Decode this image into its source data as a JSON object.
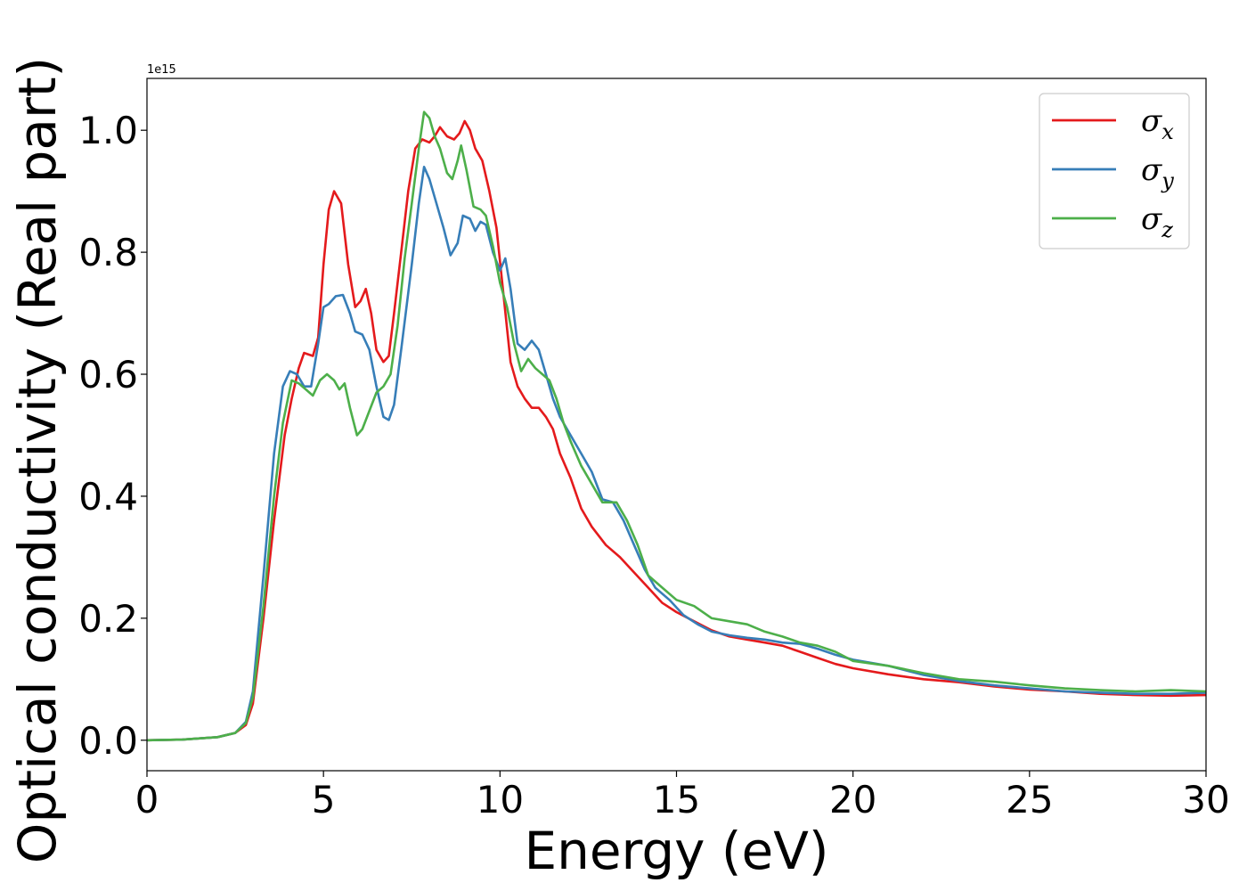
{
  "chart_data": {
    "type": "line",
    "xlabel": "Energy (eV)",
    "ylabel": "Optical conductivity (Real part)",
    "y_offset_label": "1e15",
    "xlim": [
      0,
      30
    ],
    "ylim": [
      -0.05,
      1.085
    ],
    "x_ticks": [
      0,
      5,
      10,
      15,
      20,
      25,
      30
    ],
    "x_tick_labels": [
      "0",
      "5",
      "10",
      "15",
      "20",
      "25",
      "30"
    ],
    "y_ticks": [
      0.0,
      0.2,
      0.4,
      0.6,
      0.8,
      1.0
    ],
    "y_tick_labels": [
      "0.0",
      "0.2",
      "0.4",
      "0.6",
      "0.8",
      "1.0"
    ],
    "grid": false,
    "legend_position": "top-right",
    "series": [
      {
        "name": "σ",
        "subscript": "x",
        "color": "#e41a1c",
        "points": [
          [
            0,
            0
          ],
          [
            1,
            0.001
          ],
          [
            2,
            0.005
          ],
          [
            2.5,
            0.012
          ],
          [
            2.8,
            0.025
          ],
          [
            3.0,
            0.06
          ],
          [
            3.3,
            0.2
          ],
          [
            3.6,
            0.36
          ],
          [
            3.9,
            0.5
          ],
          [
            4.1,
            0.56
          ],
          [
            4.3,
            0.61
          ],
          [
            4.45,
            0.635
          ],
          [
            4.7,
            0.63
          ],
          [
            4.85,
            0.66
          ],
          [
            5.0,
            0.78
          ],
          [
            5.15,
            0.87
          ],
          [
            5.3,
            0.9
          ],
          [
            5.5,
            0.88
          ],
          [
            5.7,
            0.78
          ],
          [
            5.9,
            0.71
          ],
          [
            6.05,
            0.72
          ],
          [
            6.2,
            0.74
          ],
          [
            6.35,
            0.7
          ],
          [
            6.5,
            0.64
          ],
          [
            6.7,
            0.62
          ],
          [
            6.85,
            0.63
          ],
          [
            7.0,
            0.7
          ],
          [
            7.2,
            0.8
          ],
          [
            7.4,
            0.9
          ],
          [
            7.6,
            0.97
          ],
          [
            7.8,
            0.985
          ],
          [
            8.0,
            0.98
          ],
          [
            8.15,
            0.99
          ],
          [
            8.3,
            1.005
          ],
          [
            8.5,
            0.99
          ],
          [
            8.7,
            0.985
          ],
          [
            8.85,
            0.995
          ],
          [
            9.0,
            1.015
          ],
          [
            9.15,
            1.0
          ],
          [
            9.3,
            0.97
          ],
          [
            9.5,
            0.95
          ],
          [
            9.7,
            0.9
          ],
          [
            9.9,
            0.84
          ],
          [
            10.1,
            0.73
          ],
          [
            10.3,
            0.62
          ],
          [
            10.5,
            0.58
          ],
          [
            10.7,
            0.56
          ],
          [
            10.9,
            0.545
          ],
          [
            11.1,
            0.545
          ],
          [
            11.3,
            0.53
          ],
          [
            11.5,
            0.51
          ],
          [
            11.7,
            0.47
          ],
          [
            12.0,
            0.43
          ],
          [
            12.3,
            0.38
          ],
          [
            12.6,
            0.35
          ],
          [
            13.0,
            0.32
          ],
          [
            13.4,
            0.3
          ],
          [
            13.8,
            0.275
          ],
          [
            14.2,
            0.25
          ],
          [
            14.6,
            0.225
          ],
          [
            15.0,
            0.21
          ],
          [
            15.5,
            0.195
          ],
          [
            16.0,
            0.18
          ],
          [
            16.5,
            0.17
          ],
          [
            17.0,
            0.165
          ],
          [
            17.5,
            0.16
          ],
          [
            18.0,
            0.155
          ],
          [
            18.5,
            0.145
          ],
          [
            19.0,
            0.135
          ],
          [
            19.5,
            0.125
          ],
          [
            20.0,
            0.118
          ],
          [
            21.0,
            0.108
          ],
          [
            22.0,
            0.1
          ],
          [
            23.0,
            0.095
          ],
          [
            24.0,
            0.088
          ],
          [
            25.0,
            0.083
          ],
          [
            26.0,
            0.08
          ],
          [
            27.0,
            0.076
          ],
          [
            28.0,
            0.074
          ],
          [
            29.0,
            0.073
          ],
          [
            30.0,
            0.074
          ]
        ]
      },
      {
        "name": "σ",
        "subscript": "y",
        "color": "#377eb8",
        "points": [
          [
            0,
            0
          ],
          [
            1,
            0.001
          ],
          [
            2,
            0.005
          ],
          [
            2.5,
            0.012
          ],
          [
            2.8,
            0.03
          ],
          [
            3.0,
            0.08
          ],
          [
            3.3,
            0.27
          ],
          [
            3.6,
            0.47
          ],
          [
            3.85,
            0.58
          ],
          [
            4.05,
            0.605
          ],
          [
            4.25,
            0.6
          ],
          [
            4.45,
            0.58
          ],
          [
            4.65,
            0.58
          ],
          [
            4.85,
            0.65
          ],
          [
            5.0,
            0.71
          ],
          [
            5.15,
            0.715
          ],
          [
            5.35,
            0.728
          ],
          [
            5.55,
            0.73
          ],
          [
            5.75,
            0.7
          ],
          [
            5.9,
            0.67
          ],
          [
            6.1,
            0.665
          ],
          [
            6.3,
            0.64
          ],
          [
            6.5,
            0.58
          ],
          [
            6.7,
            0.53
          ],
          [
            6.85,
            0.525
          ],
          [
            7.0,
            0.55
          ],
          [
            7.2,
            0.64
          ],
          [
            7.5,
            0.78
          ],
          [
            7.7,
            0.88
          ],
          [
            7.85,
            0.94
          ],
          [
            8.0,
            0.92
          ],
          [
            8.2,
            0.88
          ],
          [
            8.4,
            0.84
          ],
          [
            8.6,
            0.795
          ],
          [
            8.8,
            0.815
          ],
          [
            8.95,
            0.86
          ],
          [
            9.15,
            0.855
          ],
          [
            9.3,
            0.835
          ],
          [
            9.45,
            0.85
          ],
          [
            9.6,
            0.845
          ],
          [
            9.8,
            0.8
          ],
          [
            10.0,
            0.77
          ],
          [
            10.15,
            0.79
          ],
          [
            10.3,
            0.74
          ],
          [
            10.5,
            0.65
          ],
          [
            10.7,
            0.64
          ],
          [
            10.9,
            0.655
          ],
          [
            11.1,
            0.64
          ],
          [
            11.3,
            0.6
          ],
          [
            11.5,
            0.56
          ],
          [
            11.7,
            0.53
          ],
          [
            12.0,
            0.5
          ],
          [
            12.3,
            0.47
          ],
          [
            12.6,
            0.44
          ],
          [
            12.9,
            0.395
          ],
          [
            13.2,
            0.39
          ],
          [
            13.5,
            0.36
          ],
          [
            13.8,
            0.32
          ],
          [
            14.1,
            0.28
          ],
          [
            14.4,
            0.25
          ],
          [
            14.8,
            0.23
          ],
          [
            15.2,
            0.205
          ],
          [
            15.6,
            0.19
          ],
          [
            16.0,
            0.178
          ],
          [
            16.5,
            0.172
          ],
          [
            17.0,
            0.168
          ],
          [
            17.5,
            0.165
          ],
          [
            18.0,
            0.16
          ],
          [
            18.5,
            0.158
          ],
          [
            19.0,
            0.15
          ],
          [
            19.5,
            0.14
          ],
          [
            20.0,
            0.132
          ],
          [
            21.0,
            0.122
          ],
          [
            22.0,
            0.107
          ],
          [
            23.0,
            0.097
          ],
          [
            24.0,
            0.09
          ],
          [
            25.0,
            0.085
          ],
          [
            26.0,
            0.08
          ],
          [
            27.0,
            0.078
          ],
          [
            28.0,
            0.076
          ],
          [
            29.0,
            0.076
          ],
          [
            30.0,
            0.078
          ]
        ]
      },
      {
        "name": "σ",
        "subscript": "z",
        "color": "#4daf4a",
        "points": [
          [
            0,
            0
          ],
          [
            1,
            0.001
          ],
          [
            2,
            0.005
          ],
          [
            2.5,
            0.012
          ],
          [
            2.8,
            0.028
          ],
          [
            3.0,
            0.07
          ],
          [
            3.3,
            0.22
          ],
          [
            3.6,
            0.4
          ],
          [
            3.85,
            0.52
          ],
          [
            4.1,
            0.59
          ],
          [
            4.3,
            0.585
          ],
          [
            4.5,
            0.575
          ],
          [
            4.7,
            0.565
          ],
          [
            4.9,
            0.59
          ],
          [
            5.1,
            0.6
          ],
          [
            5.3,
            0.59
          ],
          [
            5.45,
            0.575
          ],
          [
            5.6,
            0.585
          ],
          [
            5.75,
            0.545
          ],
          [
            5.95,
            0.5
          ],
          [
            6.1,
            0.51
          ],
          [
            6.3,
            0.54
          ],
          [
            6.5,
            0.57
          ],
          [
            6.7,
            0.58
          ],
          [
            6.9,
            0.6
          ],
          [
            7.1,
            0.68
          ],
          [
            7.3,
            0.79
          ],
          [
            7.5,
            0.88
          ],
          [
            7.7,
            0.97
          ],
          [
            7.85,
            1.03
          ],
          [
            8.0,
            1.02
          ],
          [
            8.15,
            0.99
          ],
          [
            8.3,
            0.97
          ],
          [
            8.5,
            0.93
          ],
          [
            8.65,
            0.92
          ],
          [
            8.8,
            0.95
          ],
          [
            8.9,
            0.975
          ],
          [
            9.05,
            0.935
          ],
          [
            9.25,
            0.875
          ],
          [
            9.45,
            0.87
          ],
          [
            9.6,
            0.86
          ],
          [
            9.8,
            0.81
          ],
          [
            10.0,
            0.75
          ],
          [
            10.2,
            0.71
          ],
          [
            10.4,
            0.65
          ],
          [
            10.6,
            0.605
          ],
          [
            10.8,
            0.625
          ],
          [
            11.0,
            0.61
          ],
          [
            11.2,
            0.6
          ],
          [
            11.4,
            0.59
          ],
          [
            11.6,
            0.56
          ],
          [
            11.8,
            0.52
          ],
          [
            12.0,
            0.49
          ],
          [
            12.3,
            0.45
          ],
          [
            12.6,
            0.42
          ],
          [
            12.9,
            0.39
          ],
          [
            13.3,
            0.39
          ],
          [
            13.6,
            0.36
          ],
          [
            13.9,
            0.32
          ],
          [
            14.2,
            0.27
          ],
          [
            14.6,
            0.25
          ],
          [
            15.0,
            0.23
          ],
          [
            15.5,
            0.22
          ],
          [
            16.0,
            0.2
          ],
          [
            16.5,
            0.195
          ],
          [
            17.0,
            0.19
          ],
          [
            17.5,
            0.178
          ],
          [
            18.0,
            0.17
          ],
          [
            18.5,
            0.16
          ],
          [
            19.0,
            0.155
          ],
          [
            19.5,
            0.145
          ],
          [
            20.0,
            0.13
          ],
          [
            21.0,
            0.122
          ],
          [
            22.0,
            0.11
          ],
          [
            23.0,
            0.1
          ],
          [
            24.0,
            0.096
          ],
          [
            25.0,
            0.09
          ],
          [
            26.0,
            0.085
          ],
          [
            27.0,
            0.082
          ],
          [
            28.0,
            0.08
          ],
          [
            29.0,
            0.082
          ],
          [
            30.0,
            0.08
          ]
        ]
      }
    ]
  }
}
